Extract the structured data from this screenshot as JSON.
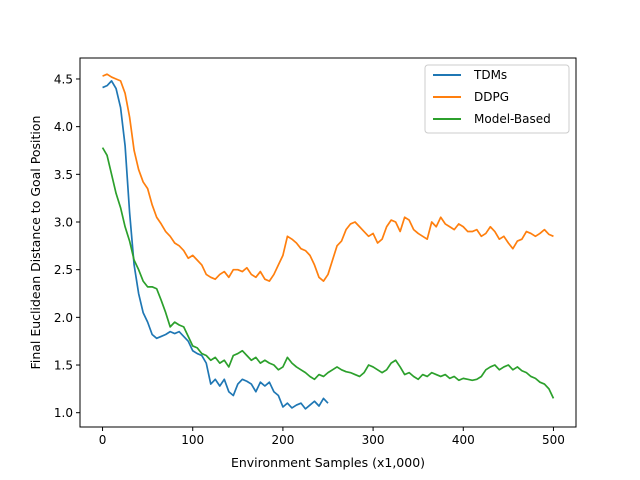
{
  "chart_data": {
    "type": "line",
    "title": "",
    "xlabel": "Environment Samples (x1,000)",
    "ylabel": "Final Euclidean Distance to Goal Position",
    "xlim": [
      -25,
      525
    ],
    "ylim": [
      0.85,
      4.72
    ],
    "xticks": [
      0,
      100,
      200,
      300,
      400,
      500
    ],
    "yticks": [
      1.0,
      1.5,
      2.0,
      2.5,
      3.0,
      3.5,
      4.0,
      4.5
    ],
    "ytick_labels": [
      "1.0",
      "1.5",
      "2.0",
      "2.5",
      "3.0",
      "3.5",
      "4.0",
      "4.5"
    ],
    "grid": false,
    "legend_position": "top-right",
    "series": [
      {
        "name": "TDMs",
        "color": "#1f77b4",
        "x": [
          0,
          5,
          10,
          15,
          20,
          25,
          30,
          35,
          40,
          45,
          50,
          55,
          60,
          65,
          70,
          75,
          80,
          85,
          90,
          95,
          100,
          105,
          110,
          115,
          120,
          125,
          130,
          135,
          140,
          145,
          150,
          155,
          160,
          165,
          170,
          175,
          180,
          185,
          190,
          195,
          200,
          205,
          210,
          215,
          220,
          225,
          230,
          235,
          240,
          245,
          250
        ],
        "y": [
          4.41,
          4.43,
          4.48,
          4.4,
          4.2,
          3.8,
          3.1,
          2.55,
          2.25,
          2.05,
          1.95,
          1.82,
          1.78,
          1.8,
          1.82,
          1.85,
          1.83,
          1.85,
          1.8,
          1.75,
          1.65,
          1.62,
          1.6,
          1.52,
          1.3,
          1.35,
          1.28,
          1.35,
          1.22,
          1.18,
          1.3,
          1.35,
          1.33,
          1.3,
          1.22,
          1.32,
          1.28,
          1.32,
          1.22,
          1.18,
          1.06,
          1.1,
          1.05,
          1.08,
          1.1,
          1.04,
          1.08,
          1.12,
          1.07,
          1.15,
          1.1
        ]
      },
      {
        "name": "DDPG",
        "color": "#ff7f0e",
        "x": [
          0,
          5,
          10,
          15,
          20,
          25,
          30,
          35,
          40,
          45,
          50,
          55,
          60,
          65,
          70,
          75,
          80,
          85,
          90,
          95,
          100,
          105,
          110,
          115,
          120,
          125,
          130,
          135,
          140,
          145,
          150,
          155,
          160,
          165,
          170,
          175,
          180,
          185,
          190,
          195,
          200,
          205,
          210,
          215,
          220,
          225,
          230,
          235,
          240,
          245,
          250,
          255,
          260,
          265,
          270,
          275,
          280,
          285,
          290,
          295,
          300,
          305,
          310,
          315,
          320,
          325,
          330,
          335,
          340,
          345,
          350,
          355,
          360,
          365,
          370,
          375,
          380,
          385,
          390,
          395,
          400,
          405,
          410,
          415,
          420,
          425,
          430,
          435,
          440,
          445,
          450,
          455,
          460,
          465,
          470,
          475,
          480,
          485,
          490,
          495,
          500
        ],
        "y": [
          4.53,
          4.55,
          4.52,
          4.5,
          4.48,
          4.35,
          4.1,
          3.75,
          3.55,
          3.42,
          3.35,
          3.18,
          3.05,
          2.98,
          2.9,
          2.85,
          2.78,
          2.75,
          2.7,
          2.62,
          2.65,
          2.6,
          2.55,
          2.45,
          2.42,
          2.4,
          2.45,
          2.48,
          2.42,
          2.5,
          2.5,
          2.48,
          2.52,
          2.45,
          2.42,
          2.48,
          2.4,
          2.38,
          2.45,
          2.55,
          2.65,
          2.85,
          2.82,
          2.78,
          2.72,
          2.7,
          2.65,
          2.55,
          2.42,
          2.38,
          2.45,
          2.6,
          2.75,
          2.8,
          2.92,
          2.98,
          3.0,
          2.95,
          2.9,
          2.85,
          2.88,
          2.78,
          2.82,
          2.95,
          3.02,
          3.0,
          2.9,
          3.05,
          3.02,
          2.92,
          2.88,
          2.85,
          2.82,
          3.0,
          2.95,
          3.05,
          2.98,
          2.95,
          2.92,
          2.98,
          2.95,
          2.9,
          2.9,
          2.92,
          2.85,
          2.88,
          2.95,
          2.9,
          2.82,
          2.85,
          2.78,
          2.72,
          2.8,
          2.82,
          2.9,
          2.88,
          2.85,
          2.88,
          2.92,
          2.87,
          2.85
        ]
      },
      {
        "name": "Model-Based",
        "color": "#2ca02c",
        "x": [
          0,
          5,
          10,
          15,
          20,
          25,
          30,
          35,
          40,
          45,
          50,
          55,
          60,
          65,
          70,
          75,
          80,
          85,
          90,
          95,
          100,
          105,
          110,
          115,
          120,
          125,
          130,
          135,
          140,
          145,
          150,
          155,
          160,
          165,
          170,
          175,
          180,
          185,
          190,
          195,
          200,
          205,
          210,
          215,
          220,
          225,
          230,
          235,
          240,
          245,
          250,
          255,
          260,
          265,
          270,
          275,
          280,
          285,
          290,
          295,
          300,
          305,
          310,
          315,
          320,
          325,
          330,
          335,
          340,
          345,
          350,
          355,
          360,
          365,
          370,
          375,
          380,
          385,
          390,
          395,
          400,
          405,
          410,
          415,
          420,
          425,
          430,
          435,
          440,
          445,
          450,
          455,
          460,
          465,
          470,
          475,
          480,
          485,
          490,
          495,
          500
        ],
        "y": [
          3.78,
          3.7,
          3.5,
          3.3,
          3.15,
          2.95,
          2.8,
          2.6,
          2.5,
          2.38,
          2.32,
          2.32,
          2.3,
          2.18,
          2.05,
          1.9,
          1.95,
          1.92,
          1.9,
          1.8,
          1.7,
          1.68,
          1.62,
          1.6,
          1.55,
          1.58,
          1.52,
          1.55,
          1.48,
          1.6,
          1.62,
          1.65,
          1.6,
          1.55,
          1.58,
          1.52,
          1.55,
          1.52,
          1.5,
          1.45,
          1.48,
          1.58,
          1.52,
          1.48,
          1.45,
          1.42,
          1.38,
          1.35,
          1.4,
          1.38,
          1.42,
          1.45,
          1.48,
          1.45,
          1.43,
          1.42,
          1.4,
          1.38,
          1.42,
          1.5,
          1.48,
          1.45,
          1.42,
          1.45,
          1.52,
          1.55,
          1.48,
          1.4,
          1.42,
          1.38,
          1.35,
          1.4,
          1.38,
          1.42,
          1.4,
          1.38,
          1.4,
          1.36,
          1.38,
          1.34,
          1.36,
          1.35,
          1.34,
          1.35,
          1.38,
          1.45,
          1.48,
          1.5,
          1.45,
          1.48,
          1.5,
          1.45,
          1.48,
          1.44,
          1.42,
          1.38,
          1.36,
          1.32,
          1.3,
          1.25,
          1.15
        ]
      }
    ]
  }
}
